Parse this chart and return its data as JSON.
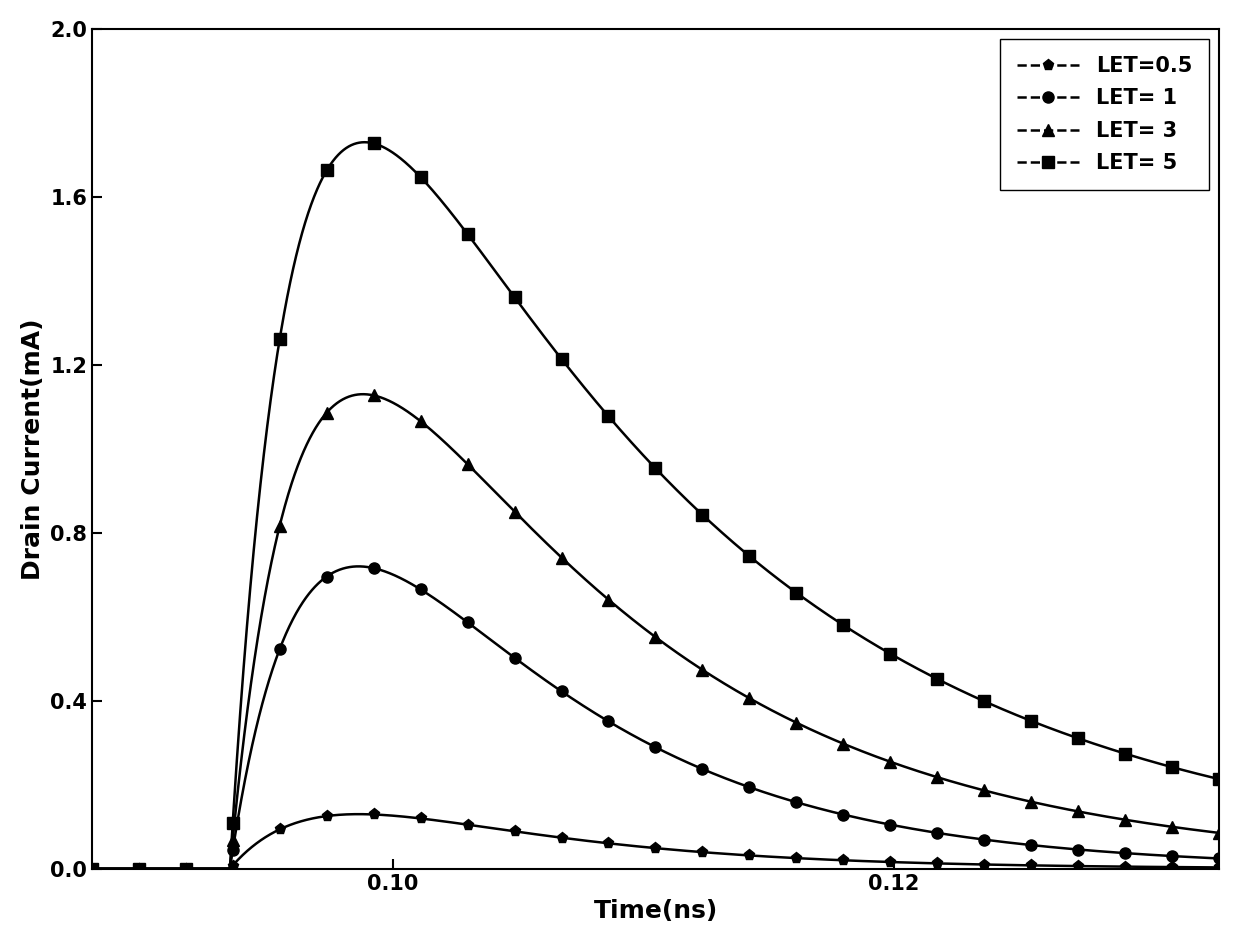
{
  "xlabel": "Time(ns)",
  "ylabel": "Drain Current(mA)",
  "xlim": [
    0.088,
    0.133
  ],
  "ylim": [
    0.0,
    2.0
  ],
  "xticks": [
    0.1,
    0.12
  ],
  "yticks": [
    0.0,
    0.4,
    0.8,
    1.2,
    1.6,
    2.0
  ],
  "series": [
    {
      "label": "LET=0.5",
      "marker": "p",
      "markersize": 8,
      "t0": 0.0935,
      "peak": 0.13,
      "rise_tau": 0.0035,
      "fall_tau": 0.008
    },
    {
      "label": "LET= 1",
      "marker": "o",
      "markersize": 8,
      "t0": 0.0935,
      "peak": 0.72,
      "rise_tau": 0.0032,
      "fall_tau": 0.009
    },
    {
      "label": "LET= 3",
      "marker": "^",
      "markersize": 8,
      "t0": 0.0935,
      "peak": 1.13,
      "rise_tau": 0.0028,
      "fall_tau": 0.012
    },
    {
      "label": "LET= 5",
      "marker": "s",
      "markersize": 8,
      "t0": 0.0935,
      "peak": 1.73,
      "rise_tau": 0.0025,
      "fall_tau": 0.015
    }
  ],
  "n_markers": 25,
  "background_color": "#ffffff",
  "legend_fontsize": 15,
  "axis_fontsize": 18,
  "tick_fontsize": 15,
  "linewidth": 1.8
}
